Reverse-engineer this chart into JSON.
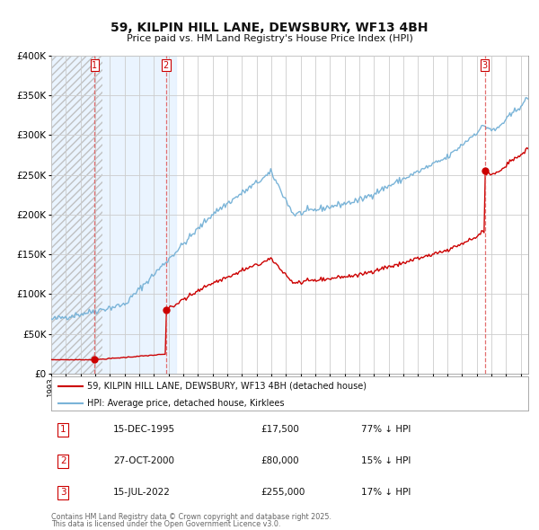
{
  "title": "59, KILPIN HILL LANE, DEWSBURY, WF13 4BH",
  "subtitle": "Price paid vs. HM Land Registry's House Price Index (HPI)",
  "legend_label_red": "59, KILPIN HILL LANE, DEWSBURY, WF13 4BH (detached house)",
  "legend_label_blue": "HPI: Average price, detached house, Kirklees",
  "footer_line1": "Contains HM Land Registry data © Crown copyright and database right 2025.",
  "footer_line2": "This data is licensed under the Open Government Licence v3.0.",
  "table_rows": [
    {
      "num": "1",
      "date": "15-DEC-1995",
      "price": "£17,500",
      "hpi": "77% ↓ HPI"
    },
    {
      "num": "2",
      "date": "27-OCT-2000",
      "price": "£80,000",
      "hpi": "15% ↓ HPI"
    },
    {
      "num": "3",
      "date": "15-JUL-2022",
      "price": "£255,000",
      "hpi": "17% ↓ HPI"
    }
  ],
  "sale_dates_num": [
    1995.96,
    2000.82,
    2022.54
  ],
  "sale_prices": [
    17500,
    80000,
    255000
  ],
  "ylim": [
    0,
    400000
  ],
  "yticks": [
    0,
    50000,
    100000,
    150000,
    200000,
    250000,
    300000,
    350000,
    400000
  ],
  "xlim_start": 1993.0,
  "xlim_end": 2025.5,
  "red_color": "#cc0000",
  "blue_color": "#7ab4d8",
  "dashed_color": "#e06060",
  "bg_shaded": "#ddeeff",
  "hatch_color": "#bbbbbb",
  "grid_color": "#cccccc",
  "bg_color": "#ffffff"
}
